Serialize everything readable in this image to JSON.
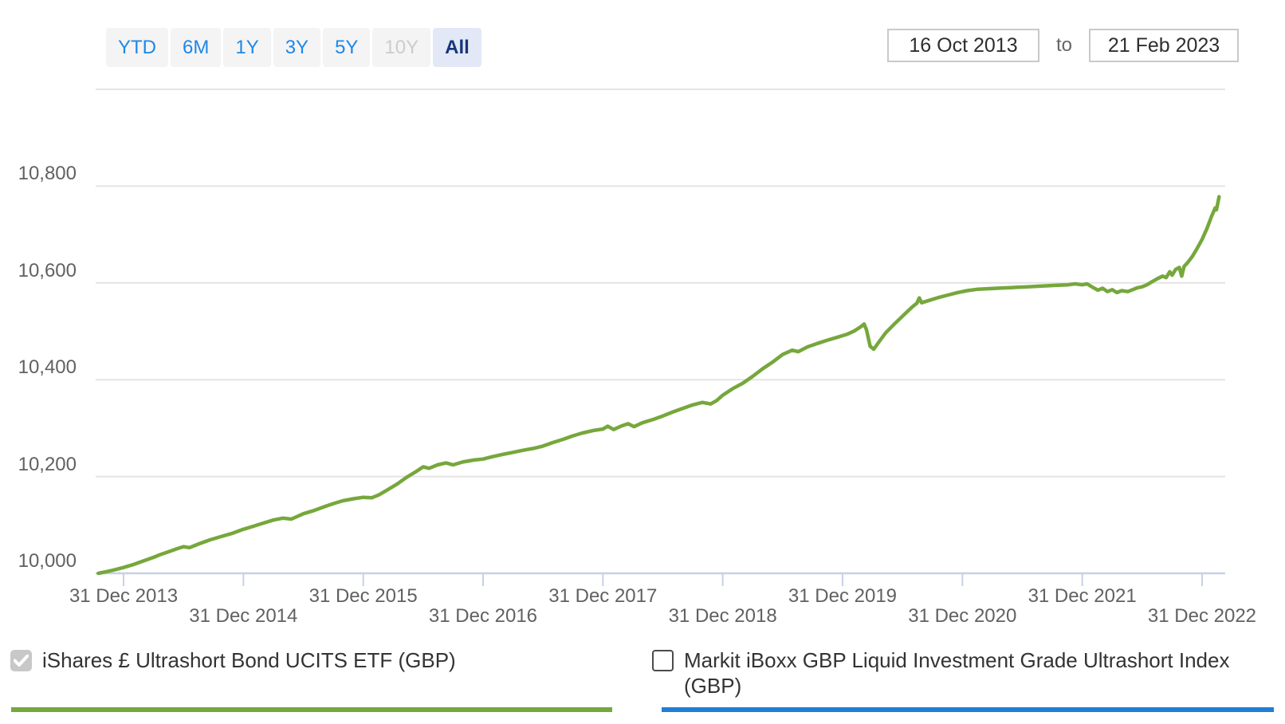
{
  "range_selector": {
    "options": [
      {
        "label": "YTD",
        "state": "enabled"
      },
      {
        "label": "6M",
        "state": "enabled"
      },
      {
        "label": "1Y",
        "state": "enabled"
      },
      {
        "label": "3Y",
        "state": "enabled"
      },
      {
        "label": "5Y",
        "state": "enabled"
      },
      {
        "label": "10Y",
        "state": "disabled"
      },
      {
        "label": "All",
        "state": "selected"
      }
    ]
  },
  "date_range": {
    "start": "16 Oct 2013",
    "separator": "to",
    "end": "21 Feb 2023"
  },
  "legend": [
    {
      "label": "iShares £ Ultrashort Bond UCITS ETF (GBP)",
      "checked": true,
      "disabled": true,
      "color": "#76a73c"
    },
    {
      "label": "Markit iBoxx GBP Liquid Investment Grade Ultrashort Index (GBP)",
      "checked": false,
      "disabled": false,
      "color": "#1f7ed6"
    }
  ],
  "chart_data": {
    "type": "line",
    "title": "",
    "xlabel": "",
    "ylabel": "",
    "grid": true,
    "x_range_dates": [
      "16 Oct 2013",
      "21 Feb 2023"
    ],
    "x_range": [
      2013.79,
      2023.142
    ],
    "ylim": [
      10000,
      11000
    ],
    "gridline_values": [
      11000,
      10800,
      10600,
      10400,
      10200
    ],
    "y_axis": {
      "ticks": [
        {
          "v": 10800,
          "label": "10,800"
        },
        {
          "v": 10600,
          "label": "10,600"
        },
        {
          "v": 10400,
          "label": "10,400"
        },
        {
          "v": 10200,
          "label": "10,200"
        },
        {
          "v": 10000,
          "label": "10,000"
        }
      ]
    },
    "x_axis": {
      "ticks": [
        {
          "t": 2014.0,
          "label": "31 Dec 2013",
          "row": 1
        },
        {
          "t": 2015.0,
          "label": "31 Dec 2014",
          "row": 2
        },
        {
          "t": 2016.0,
          "label": "31 Dec 2015",
          "row": 1
        },
        {
          "t": 2017.0,
          "label": "31 Dec 2016",
          "row": 2
        },
        {
          "t": 2018.0,
          "label": "31 Dec 2017",
          "row": 1
        },
        {
          "t": 2019.0,
          "label": "31 Dec 2018",
          "row": 2
        },
        {
          "t": 2020.0,
          "label": "31 Dec 2019",
          "row": 1
        },
        {
          "t": 2021.0,
          "label": "31 Dec 2020",
          "row": 2
        },
        {
          "t": 2022.0,
          "label": "31 Dec 2021",
          "row": 1
        },
        {
          "t": 2023.0,
          "label": "31 Dec 2022",
          "row": 2
        }
      ]
    },
    "series": [
      {
        "name": "iShares £ Ultrashort Bond UCITS ETF (GBP)",
        "color": "#76a73c",
        "visible": true,
        "points": [
          [
            2013.79,
            10000
          ],
          [
            2013.85,
            10003
          ],
          [
            2013.92,
            10007
          ],
          [
            2014.0,
            10012
          ],
          [
            2014.08,
            10018
          ],
          [
            2014.17,
            10026
          ],
          [
            2014.25,
            10033
          ],
          [
            2014.3,
            10038
          ],
          [
            2014.38,
            10045
          ],
          [
            2014.45,
            10051
          ],
          [
            2014.5,
            10055
          ],
          [
            2014.55,
            10053
          ],
          [
            2014.63,
            10061
          ],
          [
            2014.72,
            10069
          ],
          [
            2014.8,
            10075
          ],
          [
            2014.9,
            10082
          ],
          [
            2015.0,
            10091
          ],
          [
            2015.08,
            10097
          ],
          [
            2015.17,
            10104
          ],
          [
            2015.25,
            10110
          ],
          [
            2015.33,
            10114
          ],
          [
            2015.4,
            10112
          ],
          [
            2015.5,
            10123
          ],
          [
            2015.58,
            10129
          ],
          [
            2015.67,
            10137
          ],
          [
            2015.75,
            10144
          ],
          [
            2015.83,
            10150
          ],
          [
            2015.92,
            10154
          ],
          [
            2016.0,
            10157
          ],
          [
            2016.07,
            10156
          ],
          [
            2016.13,
            10162
          ],
          [
            2016.2,
            10172
          ],
          [
            2016.28,
            10184
          ],
          [
            2016.36,
            10198
          ],
          [
            2016.44,
            10210
          ],
          [
            2016.5,
            10220
          ],
          [
            2016.55,
            10217
          ],
          [
            2016.62,
            10224
          ],
          [
            2016.69,
            10228
          ],
          [
            2016.75,
            10224
          ],
          [
            2016.83,
            10230
          ],
          [
            2016.92,
            10234
          ],
          [
            2017.0,
            10236
          ],
          [
            2017.08,
            10241
          ],
          [
            2017.17,
            10246
          ],
          [
            2017.25,
            10250
          ],
          [
            2017.33,
            10254
          ],
          [
            2017.42,
            10258
          ],
          [
            2017.5,
            10263
          ],
          [
            2017.58,
            10270
          ],
          [
            2017.67,
            10277
          ],
          [
            2017.75,
            10284
          ],
          [
            2017.83,
            10290
          ],
          [
            2017.92,
            10295
          ],
          [
            2018.0,
            10298
          ],
          [
            2018.04,
            10304
          ],
          [
            2018.09,
            10297
          ],
          [
            2018.15,
            10304
          ],
          [
            2018.21,
            10309
          ],
          [
            2018.26,
            10303
          ],
          [
            2018.33,
            10311
          ],
          [
            2018.42,
            10318
          ],
          [
            2018.5,
            10325
          ],
          [
            2018.58,
            10333
          ],
          [
            2018.67,
            10341
          ],
          [
            2018.75,
            10348
          ],
          [
            2018.83,
            10353
          ],
          [
            2018.9,
            10350
          ],
          [
            2018.95,
            10357
          ],
          [
            2019.0,
            10368
          ],
          [
            2019.08,
            10381
          ],
          [
            2019.17,
            10393
          ],
          [
            2019.25,
            10407
          ],
          [
            2019.33,
            10422
          ],
          [
            2019.42,
            10437
          ],
          [
            2019.5,
            10452
          ],
          [
            2019.58,
            10461
          ],
          [
            2019.63,
            10458
          ],
          [
            2019.71,
            10468
          ],
          [
            2019.79,
            10475
          ],
          [
            2019.88,
            10482
          ],
          [
            2019.96,
            10488
          ],
          [
            2020.04,
            10494
          ],
          [
            2020.1,
            10501
          ],
          [
            2020.15,
            10509
          ],
          [
            2020.18,
            10515
          ],
          [
            2020.2,
            10503
          ],
          [
            2020.23,
            10469
          ],
          [
            2020.26,
            10463
          ],
          [
            2020.3,
            10477
          ],
          [
            2020.36,
            10497
          ],
          [
            2020.44,
            10517
          ],
          [
            2020.52,
            10536
          ],
          [
            2020.58,
            10550
          ],
          [
            2020.62,
            10558
          ],
          [
            2020.64,
            10569
          ],
          [
            2020.66,
            10559
          ],
          [
            2020.71,
            10563
          ],
          [
            2020.79,
            10569
          ],
          [
            2020.88,
            10575
          ],
          [
            2020.96,
            10580
          ],
          [
            2021.04,
            10584
          ],
          [
            2021.13,
            10587
          ],
          [
            2021.21,
            10588
          ],
          [
            2021.29,
            10589
          ],
          [
            2021.38,
            10590
          ],
          [
            2021.46,
            10591
          ],
          [
            2021.54,
            10592
          ],
          [
            2021.63,
            10593
          ],
          [
            2021.71,
            10594
          ],
          [
            2021.79,
            10595
          ],
          [
            2021.88,
            10596
          ],
          [
            2021.94,
            10598
          ],
          [
            2022.0,
            10596
          ],
          [
            2022.04,
            10598
          ],
          [
            2022.08,
            10592
          ],
          [
            2022.13,
            10585
          ],
          [
            2022.17,
            10589
          ],
          [
            2022.21,
            10582
          ],
          [
            2022.25,
            10586
          ],
          [
            2022.29,
            10580
          ],
          [
            2022.33,
            10584
          ],
          [
            2022.38,
            10582
          ],
          [
            2022.42,
            10586
          ],
          [
            2022.46,
            10590
          ],
          [
            2022.5,
            10592
          ],
          [
            2022.54,
            10596
          ],
          [
            2022.58,
            10602
          ],
          [
            2022.63,
            10609
          ],
          [
            2022.67,
            10614
          ],
          [
            2022.7,
            10611
          ],
          [
            2022.73,
            10623
          ],
          [
            2022.75,
            10616
          ],
          [
            2022.78,
            10628
          ],
          [
            2022.81,
            10632
          ],
          [
            2022.83,
            10614
          ],
          [
            2022.85,
            10634
          ],
          [
            2022.88,
            10642
          ],
          [
            2022.92,
            10655
          ],
          [
            2022.96,
            10672
          ],
          [
            2023.0,
            10690
          ],
          [
            2023.04,
            10712
          ],
          [
            2023.08,
            10738
          ],
          [
            2023.11,
            10755
          ],
          [
            2023.12,
            10751
          ],
          [
            2023.142,
            10778
          ]
        ]
      },
      {
        "name": "Markit iBoxx GBP Liquid Investment Grade Ultrashort Index (GBP)",
        "color": "#1f7ed6",
        "visible": false,
        "points": []
      }
    ],
    "colors": {
      "gridline": "#e4e4e4",
      "axis_line": "#c6d1e8",
      "axis_text": "#616161",
      "series_green": "#76a73c",
      "series_blue": "#1f7ed6"
    }
  }
}
